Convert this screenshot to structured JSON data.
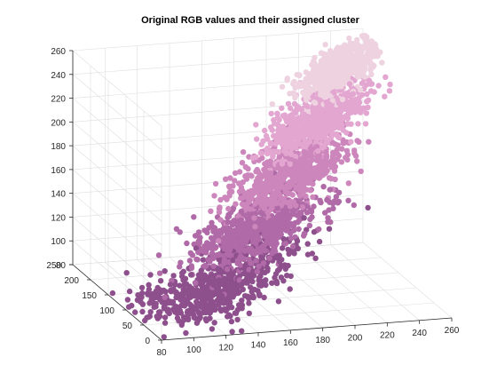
{
  "chart_data": {
    "type": "scatter3d",
    "title": "Original RGB values and their assigned cluster",
    "xlabel": "",
    "ylabel": "",
    "zlabel": "",
    "grid": true,
    "xlim": [
      80,
      260
    ],
    "ylim": [
      0,
      250
    ],
    "zlim": [
      80,
      260
    ],
    "x_ticks": [
      "80",
      "100",
      "120",
      "140",
      "160",
      "180",
      "200",
      "220",
      "240",
      "260"
    ],
    "y_ticks": [
      "0",
      "50",
      "100",
      "150",
      "200",
      "250"
    ],
    "z_ticks": [
      "80",
      "100",
      "120",
      "140",
      "160",
      "180",
      "200",
      "220",
      "240",
      "260"
    ],
    "series": [
      {
        "color": "#8e4f8d",
        "center": [
          135,
          95,
          95
        ],
        "spread": [
          40,
          70,
          30
        ]
      },
      {
        "color": "#b06aa7",
        "center": [
          168,
          130,
          130
        ],
        "spread": [
          32,
          60,
          24
        ]
      },
      {
        "color": "#cc86bb",
        "center": [
          195,
          165,
          165
        ],
        "spread": [
          28,
          55,
          22
        ]
      },
      {
        "color": "#e2a6d0",
        "center": [
          218,
          195,
          200
        ],
        "spread": [
          24,
          45,
          20
        ]
      },
      {
        "color": "#eed2e0",
        "center": [
          238,
          220,
          235
        ],
        "spread": [
          18,
          30,
          16
        ]
      }
    ]
  }
}
